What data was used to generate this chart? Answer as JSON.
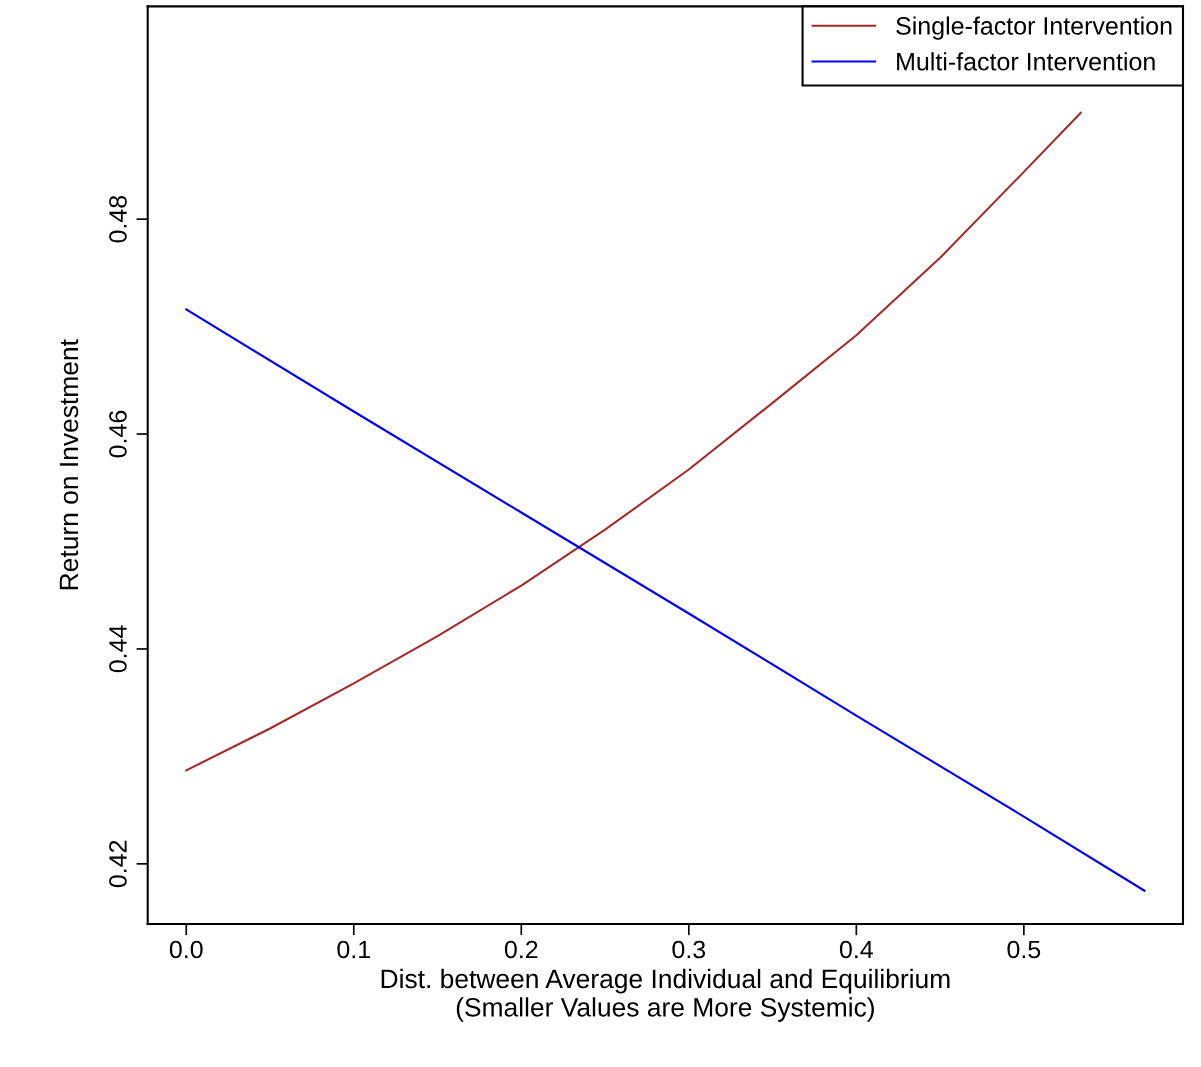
{
  "chart_data": {
    "type": "line",
    "xlabel": "Dist. between Average Individual and Equilibrium\n(Smaller Values are More Systemic)",
    "ylabel": "Return on Investment",
    "series": [
      {
        "name": "Single-factor Intervention",
        "color": "#a52a2a",
        "x": [
          0,
          0.05,
          0.1,
          0.15,
          0.2,
          0.25,
          0.3,
          0.35,
          0.4,
          0.45,
          0.5,
          0.534
        ],
        "values": [
          0.4287,
          0.4326,
          0.4368,
          0.4412,
          0.4459,
          0.4511,
          0.4567,
          0.4629,
          0.4692,
          0.4764,
          0.4844,
          0.4899
        ]
      },
      {
        "name": "Multi-factor Intervention",
        "color": "#0000ff",
        "x": [
          0,
          0.1,
          0.2,
          0.3,
          0.4,
          0.5,
          0.572
        ],
        "values": [
          0.4716,
          0.4621,
          0.4527,
          0.4433,
          0.4338,
          0.4244,
          0.4175
        ]
      }
    ],
    "xlim": [
      -0.023,
      0.595
    ],
    "ylim": [
      0.4144,
      0.4998
    ],
    "xticks": [
      {
        "value": 0,
        "label": "0.0"
      },
      0.1,
      0.2,
      0.3,
      0.4,
      0.5
    ],
    "yticks": [
      0.42,
      0.44,
      0.46,
      0.48
    ],
    "grid": false,
    "legend": "top right",
    "line_style": "solid",
    "marker": "none"
  }
}
